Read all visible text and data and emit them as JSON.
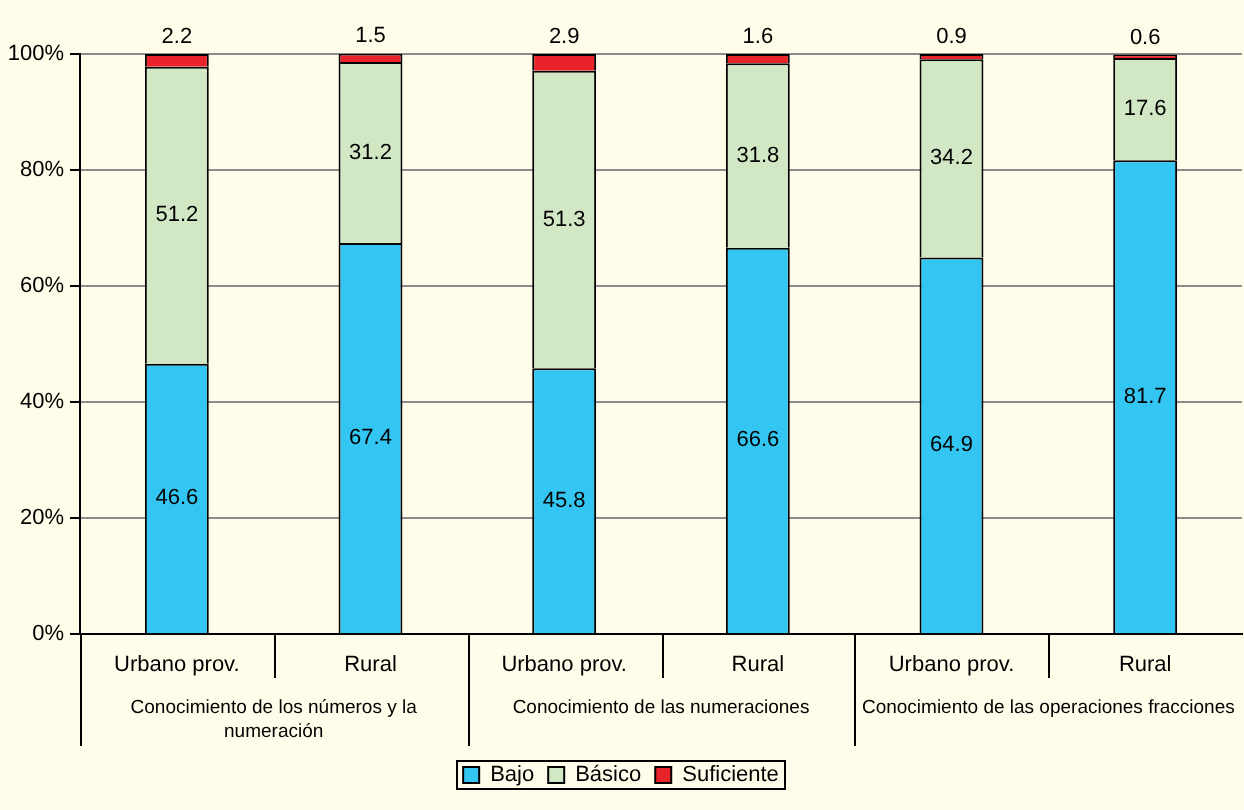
{
  "chart_data": {
    "type": "bar",
    "stacked": true,
    "categories": [
      "Urbano prov.",
      "Rural",
      "Urbano prov.",
      "Rural",
      "Urbano prov.",
      "Rural"
    ],
    "series": [
      {
        "name": "Bajo",
        "color": "#33c6f2",
        "values": [
          46.6,
          67.4,
          45.8,
          66.6,
          64.9,
          81.7
        ]
      },
      {
        "name": "Básico",
        "color": "#d2e7c4",
        "values": [
          51.2,
          31.2,
          51.3,
          31.8,
          34.2,
          17.6
        ]
      },
      {
        "name": "Suficiente",
        "color": "#e8232a",
        "values": [
          2.2,
          1.5,
          2.9,
          1.6,
          0.9,
          0.6
        ]
      }
    ],
    "ylim": [
      0,
      100
    ],
    "yticks": [
      {
        "value": 0,
        "label": "0%"
      },
      {
        "value": 20,
        "label": "20%"
      },
      {
        "value": 40,
        "label": "40%"
      },
      {
        "value": 60,
        "label": "60%"
      },
      {
        "value": 80,
        "label": "80%"
      },
      {
        "value": 100,
        "label": "100%"
      }
    ],
    "grid": "y",
    "legend": "bottom",
    "data_labels": true,
    "annotations": [
      "Conocimiento de los números y la numeración",
      "Conocimiento de las numeraciones",
      "Conocimiento de las operaciones fracciones"
    ]
  }
}
